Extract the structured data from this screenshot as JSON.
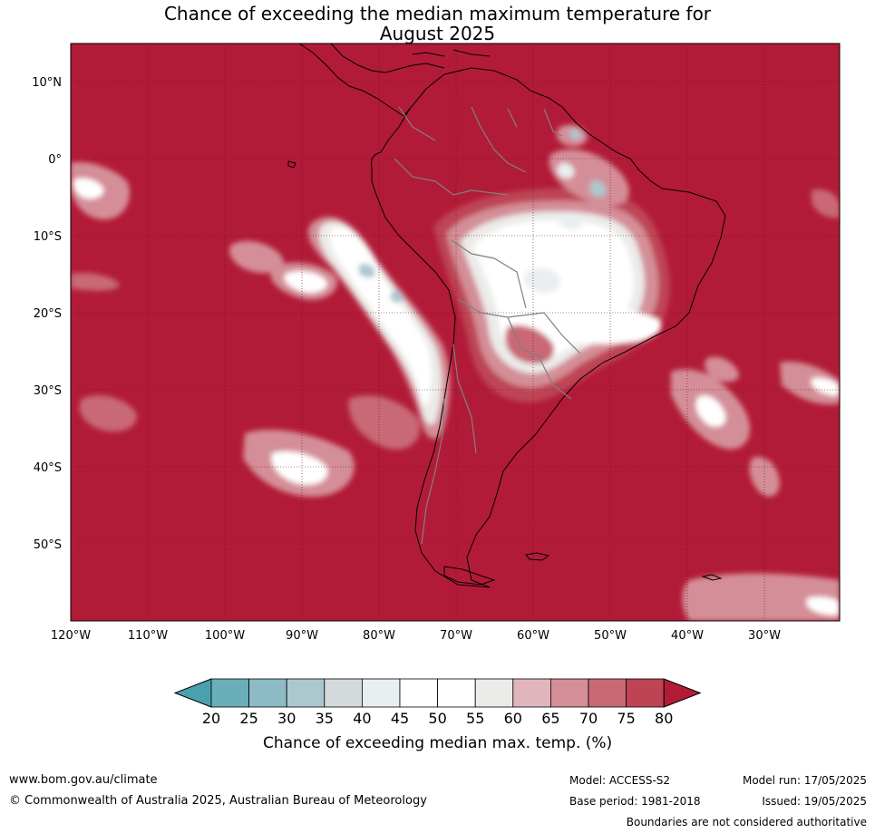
{
  "title_line1": "Chance of exceeding the median maximum temperature for",
  "title_line2": "August 2025",
  "lat_ticks": [
    {
      "lat": 10,
      "label": "10°N"
    },
    {
      "lat": 0,
      "label": "0°"
    },
    {
      "lat": -10,
      "label": "10°S"
    },
    {
      "lat": -20,
      "label": "20°S"
    },
    {
      "lat": -30,
      "label": "30°S"
    },
    {
      "lat": -40,
      "label": "40°S"
    },
    {
      "lat": -50,
      "label": "50°S"
    }
  ],
  "lon_ticks": [
    {
      "lon": -120,
      "label": "120°W"
    },
    {
      "lon": -110,
      "label": "110°W"
    },
    {
      "lon": -100,
      "label": "100°W"
    },
    {
      "lon": -90,
      "label": "90°W"
    },
    {
      "lon": -80,
      "label": "80°W"
    },
    {
      "lon": -70,
      "label": "70°W"
    },
    {
      "lon": -60,
      "label": "60°W"
    },
    {
      "lon": -50,
      "label": "50°W"
    },
    {
      "lon": -40,
      "label": "40°W"
    },
    {
      "lon": -30,
      "label": "30°W"
    }
  ],
  "colorbar": {
    "title": "Chance of exceeding median max. temp. (%)",
    "tick_labels": [
      "20",
      "25",
      "30",
      "35",
      "40",
      "45",
      "50",
      "55",
      "60",
      "65",
      "70",
      "75",
      "80"
    ],
    "colors": [
      "#4aa0ae",
      "#6aaeba",
      "#8cbac5",
      "#aac8ce",
      "#d4dadb",
      "#e9eef1",
      "#ffffff",
      "#ffffff",
      "#ebebe9",
      "#e0b6bc",
      "#d48e97",
      "#c86974",
      "#be4454",
      "#b21b37"
    ]
  },
  "colors": {
    "above": "#b21b37",
    "r75": "#be4454",
    "r70": "#c86974",
    "r65": "#d48e97",
    "r60": "#e0b6bc",
    "neutral": "#ebebe9",
    "white": "#ffffff",
    "pale_blue": "#e9eef1",
    "grey_blue": "#d4dadb",
    "blue": "#aac8ce",
    "blue2": "#8cbac5"
  },
  "footer": {
    "website": "www.bom.gov.au/climate",
    "copyright": "© Commonwealth of Australia 2025, Australian Bureau of Meteorology",
    "model": "Model: ACCESS-S2",
    "base_period": "Base period: 1981-2018",
    "model_run": "Model run: 17/05/2025",
    "issued": "Issued: 19/05/2025",
    "disclaimer": "Boundaries are not considered authoritative"
  }
}
